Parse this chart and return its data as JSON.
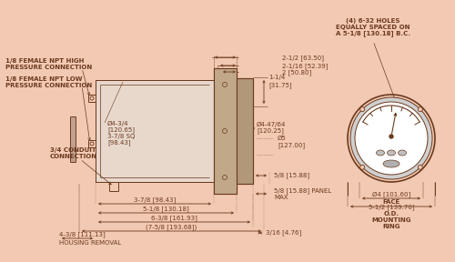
{
  "bg_color": "#f2c9b2",
  "line_color": "#6b3a1f",
  "text_color": "#6b3a1f",
  "dim_color": "#6b3a1f",
  "fs_small": 5.0,
  "fs_label": 5.5,
  "annotations": {
    "npt_high": "1/8 FEMALE NPT HIGH\nPRESSURE CONNECTION",
    "npt_low": "1/8 FEMALE NPT LOW\nPRESSURE CONNECTION",
    "conduit": "3/4 CONDUIT\nCONNECTION",
    "housing_removal": "HOUSING REMOVAL",
    "holes_note": "(4) 6-32 HOLES\nEQUALLY SPACED ON\nA 5-1/8 [130.18] B.C.",
    "face_label": "FACE",
    "od_label": "O.D.\nMOUNTING\nRING",
    "t1": "2-1/2 [63.50]",
    "t2": "2-1/16 [52.39]",
    "t3": "2 [50.80]",
    "dim_125": "1-1/4",
    "dim_125b": "[31.75]",
    "dia_body": "Ø4-3/4",
    "dia_body2": "[120.65]",
    "dia_body3": "3-7/8 SQ",
    "dia_body4": "[98.43]",
    "dia_face": "Ø4-47/64",
    "dia_face2": "[120.25]",
    "dia5": "Ø5",
    "dia5b": "[127.00]",
    "dim_58r": "5/8 [15.88]",
    "dim_panel": "5/8 [15.88] PANEL",
    "dim_panel2": "MAX",
    "dim_316": "3/16 [4.76]",
    "dim_378": "3-7/8 [98.43]",
    "dim_518": "5-1/8 [130.18]",
    "dim_638": "6-3/8 [161.93]",
    "dim_438": "4-3/8 [111.13]",
    "dim_758": "(7-5/8 [193.68])",
    "dim_face_d": "Ø4 [101.60]",
    "dim_od": "5-1/2 [139.70]"
  }
}
